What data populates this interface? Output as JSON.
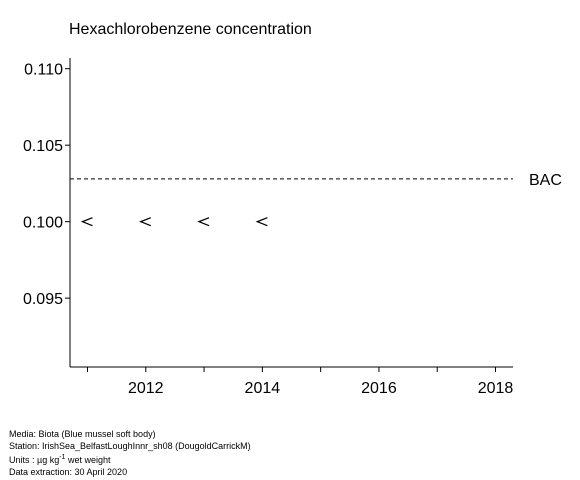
{
  "chart_data": {
    "type": "scatter",
    "title": "Hexachlorobenzene concentration",
    "xlabel": "",
    "ylabel": "",
    "xlim": [
      2010.7,
      2018.3
    ],
    "ylim": [
      0.0905,
      0.1107
    ],
    "x_ticks": [
      2012,
      2014,
      2016,
      2018
    ],
    "x_minor_ticks": [
      2011,
      2012,
      2013,
      2014,
      2015,
      2016,
      2017,
      2018
    ],
    "y_ticks": [
      0.095,
      0.1,
      0.105,
      0.11
    ],
    "y_tick_labels": [
      "0.095",
      "0.100",
      "0.105",
      "0.110"
    ],
    "grid": false,
    "series": [
      {
        "marker": "<",
        "x": [
          2011,
          2012,
          2013,
          2014
        ],
        "y": [
          0.1,
          0.1,
          0.1,
          0.1
        ]
      }
    ],
    "reference_lines": [
      {
        "label": "BAC",
        "y": 0.1028,
        "style": "dashed"
      }
    ]
  },
  "footer": {
    "media": "Media: Biota (Blue mussel soft body)",
    "station": "Station: IrishSea_BelfastLoughInnr_sh08 (DougoldCarrickM)",
    "units_prefix": "Units : µg kg",
    "units_exponent": "-1",
    "units_suffix": " wet weight",
    "extraction": "Data extraction: 30 April 2020"
  }
}
